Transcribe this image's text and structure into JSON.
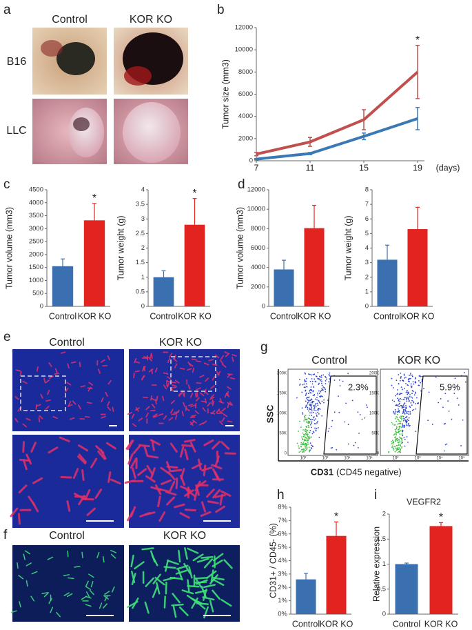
{
  "panel_a": {
    "letter": "a",
    "columns": [
      "Control",
      "KOR KO"
    ],
    "rows": [
      "B16",
      "LLC"
    ]
  },
  "panel_e": {
    "letter": "e",
    "columns": [
      "Control",
      "KOR KO"
    ]
  },
  "panel_f": {
    "letter": "f",
    "columns": [
      "Control",
      "KOR KO"
    ]
  },
  "panel_g": {
    "letter": "g",
    "columns": [
      "Control",
      "KOR KO"
    ],
    "gate_percentages": [
      "2.3%",
      "5.9%"
    ],
    "y_axis_label": "SSC",
    "x_axis_label": "CD31",
    "x_axis_note": "(CD45 negative)",
    "y_tick_labels": [
      "200K",
      "150K",
      "100K",
      "50K",
      "0"
    ],
    "x_tick_labels": [
      "10²",
      "10³",
      "10⁴",
      "10⁵"
    ]
  },
  "chart_data": [
    {
      "type": "line",
      "panel": "b",
      "ylabel": "Tumor size (mm3)",
      "xlabel": "(days)",
      "x": [
        7,
        11,
        15,
        19
      ],
      "xlim": [
        7,
        19
      ],
      "xticks": [
        7,
        11,
        15,
        19
      ],
      "ylim": [
        0,
        12000
      ],
      "yticks": [
        0,
        2000,
        4000,
        6000,
        8000,
        10000,
        12000
      ],
      "annotation": "*",
      "series": [
        {
          "color": "#c0504d",
          "values": [
            600,
            1700,
            3700,
            8000
          ],
          "errors": [
            150,
            400,
            900,
            2400
          ]
        },
        {
          "color": "#3b79b4",
          "values": [
            150,
            650,
            2200,
            3800
          ],
          "errors": [
            50,
            100,
            300,
            1000
          ]
        }
      ]
    },
    {
      "type": "bar",
      "panel": "c",
      "ylabel": "Tumor volume (mm3)",
      "categories": [
        "Control",
        "KOR KO"
      ],
      "values": [
        1550,
        3320
      ],
      "errors": [
        280,
        650
      ],
      "colors": [
        "#3a6fb0",
        "#e3231f"
      ],
      "ylim": [
        0,
        4500
      ],
      "yticks": [
        0,
        500,
        1000,
        1500,
        2000,
        2500,
        3000,
        3500,
        4000,
        4500
      ],
      "annotation": "*"
    },
    {
      "type": "bar",
      "ylabel": "Tumor weight (g)",
      "categories": [
        "Control",
        "KOR KO"
      ],
      "values": [
        1.0,
        2.8
      ],
      "errors": [
        0.22,
        0.9
      ],
      "colors": [
        "#3a6fb0",
        "#e3231f"
      ],
      "ylim": [
        0,
        4
      ],
      "yticks": [
        0,
        0.5,
        1,
        1.5,
        2,
        2.5,
        3,
        3.5,
        4
      ],
      "annotation": "*"
    },
    {
      "type": "bar",
      "panel": "d",
      "ylabel": "Tumor volume (mm3)",
      "categories": [
        "Control",
        "KOR KO"
      ],
      "values": [
        3800,
        8050
      ],
      "errors": [
        950,
        2350
      ],
      "colors": [
        "#3a6fb0",
        "#e3231f"
      ],
      "ylim": [
        0,
        12000
      ],
      "yticks": [
        0,
        2000,
        4000,
        6000,
        8000,
        10000,
        12000
      ]
    },
    {
      "type": "bar",
      "ylabel": "Tumor weight (g)",
      "categories": [
        "Control",
        "KOR KO"
      ],
      "values": [
        3.2,
        5.3
      ],
      "errors": [
        1.0,
        1.5
      ],
      "colors": [
        "#3a6fb0",
        "#e3231f"
      ],
      "ylim": [
        0,
        8
      ],
      "yticks": [
        0,
        1,
        2,
        3,
        4,
        5,
        6,
        7,
        8
      ]
    },
    {
      "type": "bar",
      "panel": "h",
      "ylabel": "CD31+ / CD45- (%)",
      "categories": [
        "Control",
        "KOR KO"
      ],
      "values": [
        2.6,
        5.85
      ],
      "errors": [
        0.45,
        1.05
      ],
      "colors": [
        "#3a6fb0",
        "#e3231f"
      ],
      "ylim": [
        0,
        8
      ],
      "yticks": [
        {
          "value": 0,
          "label": "0%"
        },
        {
          "value": 1,
          "label": "1%"
        },
        {
          "value": 2,
          "label": "2%"
        },
        {
          "value": 3,
          "label": "3%"
        },
        {
          "value": 4,
          "label": "4%"
        },
        {
          "value": 5,
          "label": "5%"
        },
        {
          "value": 6,
          "label": "6%"
        },
        {
          "value": 7,
          "label": "7%"
        },
        {
          "value": 8,
          "label": "8%"
        }
      ],
      "annotation": "*"
    },
    {
      "type": "bar",
      "panel": "i",
      "title": "VEGFR2",
      "ylabel": "Relative expression",
      "categories": [
        "Control",
        "KOR KO"
      ],
      "values": [
        1.0,
        1.76
      ],
      "errors": [
        0.02,
        0.07
      ],
      "colors": [
        "#3a6fb0",
        "#e3231f"
      ],
      "ylim": [
        0,
        2
      ],
      "yticks": [
        0,
        0.5,
        1,
        1.5,
        2
      ],
      "annotation": "*"
    }
  ]
}
